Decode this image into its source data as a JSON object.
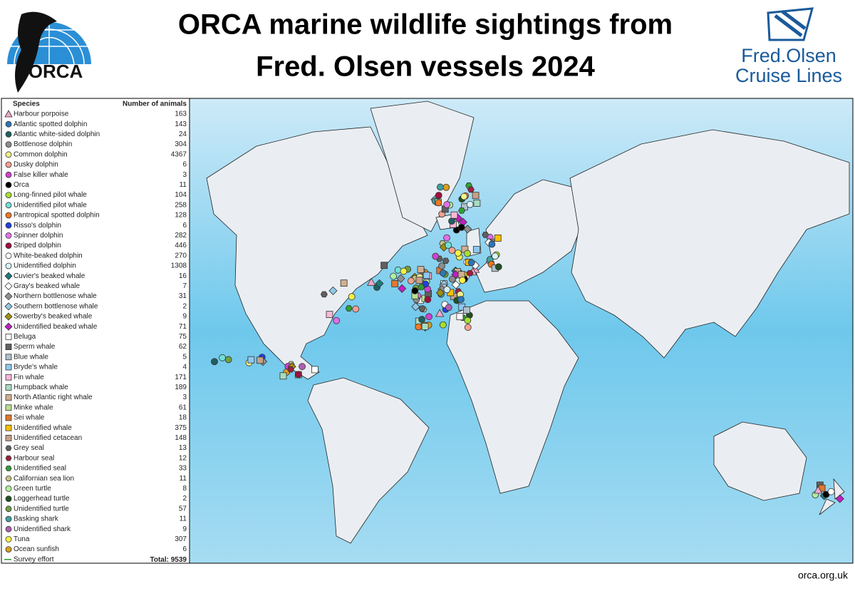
{
  "header": {
    "title_line1": "ORCA marine wildlife sightings from",
    "title_line2": "Fred. Olsen vessels 2024",
    "orca_logo_text": "ORCA",
    "partner_line1": "Fred.Olsen",
    "partner_line2": "Cruise Lines"
  },
  "legend": {
    "species_header": "Species",
    "count_header": "Number of animals",
    "items": [
      {
        "name": "Harbour porpoise",
        "count": 163,
        "color": "#f4a6c8",
        "shape": "triangle"
      },
      {
        "name": "Atlantic spotted dolphin",
        "count": 143,
        "color": "#2e75b6",
        "shape": "circle"
      },
      {
        "name": "Atlantic white-sided dolphin",
        "count": 24,
        "color": "#1f6060",
        "shape": "circle"
      },
      {
        "name": "Bottlenose dolphin",
        "count": 304,
        "color": "#8c8c8c",
        "shape": "circle"
      },
      {
        "name": "Common dolphin",
        "count": 4367,
        "color": "#f2f28a",
        "shape": "circle"
      },
      {
        "name": "Dusky dolphin",
        "count": 6,
        "color": "#f4a090",
        "shape": "circle"
      },
      {
        "name": "False killer whale",
        "count": 3,
        "color": "#d040d0",
        "shape": "circle"
      },
      {
        "name": "Orca",
        "count": 11,
        "color": "#000000",
        "shape": "circle"
      },
      {
        "name": "Long-finned pilot whale",
        "count": 104,
        "color": "#a8e030",
        "shape": "circle"
      },
      {
        "name": "Unidentified pilot whale",
        "count": 258,
        "color": "#70e0d8",
        "shape": "circle"
      },
      {
        "name": "Pantropical spotted dolphin",
        "count": 128,
        "color": "#f07820",
        "shape": "circle"
      },
      {
        "name": "Risso's dolphin",
        "count": 6,
        "color": "#2040e0",
        "shape": "circle"
      },
      {
        "name": "Spinner dolphin",
        "count": 282,
        "color": "#e070e8",
        "shape": "circle"
      },
      {
        "name": "Striped dolphin",
        "count": 446,
        "color": "#a01040",
        "shape": "circle"
      },
      {
        "name": "White-beaked dolphin",
        "count": 270,
        "color": "#ffffff",
        "shape": "circle"
      },
      {
        "name": "Unidentified dolphin",
        "count": 1308,
        "color": "#d8f4f8",
        "shape": "circle"
      },
      {
        "name": "Cuvier's beaked whale",
        "count": 16,
        "color": "#1f7a7a",
        "shape": "diamond"
      },
      {
        "name": "Gray's beaked whale",
        "count": 7,
        "color": "#ffffff",
        "shape": "diamond"
      },
      {
        "name": "Northern bottlenose whale",
        "count": 31,
        "color": "#909090",
        "shape": "diamond"
      },
      {
        "name": "Southern bottlenose whale",
        "count": 2,
        "color": "#90c8e8",
        "shape": "diamond"
      },
      {
        "name": "Sowerby's beaked whale",
        "count": 9,
        "color": "#a09010",
        "shape": "diamond"
      },
      {
        "name": "Unidentified beaked whale",
        "count": 71,
        "color": "#c020c0",
        "shape": "diamond"
      },
      {
        "name": "Beluga",
        "count": 75,
        "color": "#ffffff",
        "shape": "square"
      },
      {
        "name": "Sperm whale",
        "count": 62,
        "color": "#606060",
        "shape": "square"
      },
      {
        "name": "Blue whale",
        "count": 5,
        "color": "#b0c0cc",
        "shape": "square"
      },
      {
        "name": "Bryde's whale",
        "count": 4,
        "color": "#90c8f0",
        "shape": "square"
      },
      {
        "name": "Fin whale",
        "count": 171,
        "color": "#f8b8d8",
        "shape": "square"
      },
      {
        "name": "Humpback whale",
        "count": 189,
        "color": "#a8dcc0",
        "shape": "square"
      },
      {
        "name": "North Atlantic right whale",
        "count": 3,
        "color": "#d0b090",
        "shape": "square"
      },
      {
        "name": "Minke whale",
        "count": 61,
        "color": "#b8e090",
        "shape": "square"
      },
      {
        "name": "Sei whale",
        "count": 18,
        "color": "#e07830",
        "shape": "square"
      },
      {
        "name": "Unidentified whale",
        "count": 375,
        "color": "#f8c000",
        "shape": "square"
      },
      {
        "name": "Unidentified cetacean",
        "count": 148,
        "color": "#c8a088",
        "shape": "square"
      },
      {
        "name": "Grey seal",
        "count": 13,
        "color": "#606060",
        "shape": "hexagon"
      },
      {
        "name": "Harbour seal",
        "count": 12,
        "color": "#a02040",
        "shape": "hexagon"
      },
      {
        "name": "Unidentified seal",
        "count": 33,
        "color": "#30a030",
        "shape": "hexagon"
      },
      {
        "name": "Californian sea lion",
        "count": 11,
        "color": "#c8c880",
        "shape": "hexagon"
      },
      {
        "name": "Green turtle",
        "count": 8,
        "color": "#b0f0a0",
        "shape": "circle"
      },
      {
        "name": "Loggerhead turtle",
        "count": 2,
        "color": "#205020",
        "shape": "circle"
      },
      {
        "name": "Unidentified turtle",
        "count": 57,
        "color": "#70a040",
        "shape": "circle"
      },
      {
        "name": "Basking shark",
        "count": 11,
        "color": "#40a0a0",
        "shape": "circle"
      },
      {
        "name": "Unidentified shark",
        "count": 9,
        "color": "#b060b0",
        "shape": "circle"
      },
      {
        "name": "Tuna",
        "count": 307,
        "color": "#f8f040",
        "shape": "circle"
      },
      {
        "name": "Ocean sunfish",
        "count": 6,
        "color": "#d8a020",
        "shape": "circle"
      }
    ],
    "survey_effort": "Survey effort",
    "total_label": "Total:",
    "total": 9539
  },
  "footer": {
    "url": "orca.org.uk"
  }
}
